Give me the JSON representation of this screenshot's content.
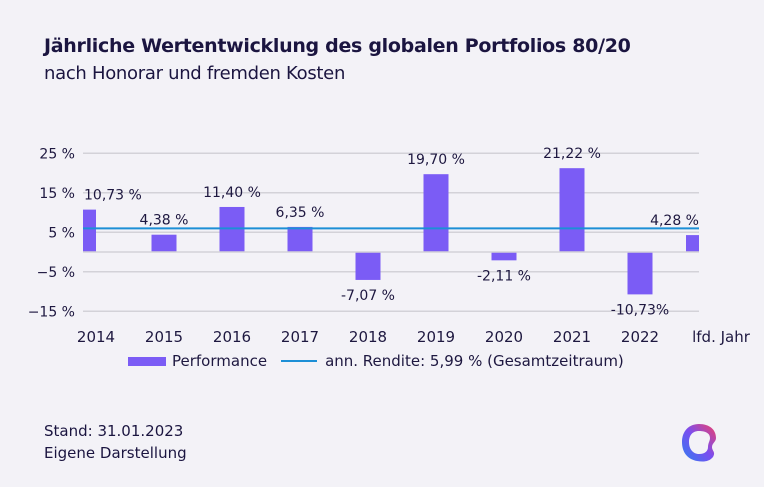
{
  "title": "Jährliche Wertentwicklung des globalen Portfolios 80/20",
  "subtitle": "nach Honorar und fremden Kosten",
  "footer": {
    "stand": "Stand: 31.01.2023",
    "source": "Eigene Darstellung"
  },
  "logo": "brand-logo-ring",
  "chart_data": {
    "type": "bar",
    "title": "Jährliche Wertentwicklung des globalen Portfolios 80/20",
    "subtitle": "nach Honorar und fremden Kosten",
    "xlabel": "",
    "ylabel": "",
    "categories": [
      "2014",
      "2015",
      "2016",
      "2017",
      "2018",
      "2019",
      "2020",
      "2021",
      "2022",
      "lfd. Jahr"
    ],
    "series": [
      {
        "name": "Performance",
        "color": "#7b5cf5",
        "values": [
          10.73,
          4.38,
          11.4,
          6.35,
          -7.07,
          19.7,
          -2.11,
          21.22,
          -10.73,
          4.28
        ],
        "labels": [
          "10,73 %",
          "4,38 %",
          "11,40 %",
          "6,35 %",
          "-7,07 %",
          "19,70 %",
          "-2,11 %",
          "21,22 %",
          "-10,73%",
          "4,28 %"
        ]
      }
    ],
    "reference_line": {
      "name": "ann. Rendite: 5,99 % (Gesamtzeitraum)",
      "value": 5.99,
      "color": "#1c8fd6"
    },
    "yticks": [
      25,
      15,
      5,
      -5,
      -15
    ],
    "ytick_labels": [
      "25 %",
      "15 %",
      "5 %",
      "−5 %",
      "−15 %"
    ],
    "ylim": [
      -15,
      25
    ],
    "grid": true,
    "legend": {
      "position": "bottom",
      "entries": [
        "Performance",
        "ann. Rendite: 5,99 % (Gesamtzeitraum)"
      ]
    }
  }
}
